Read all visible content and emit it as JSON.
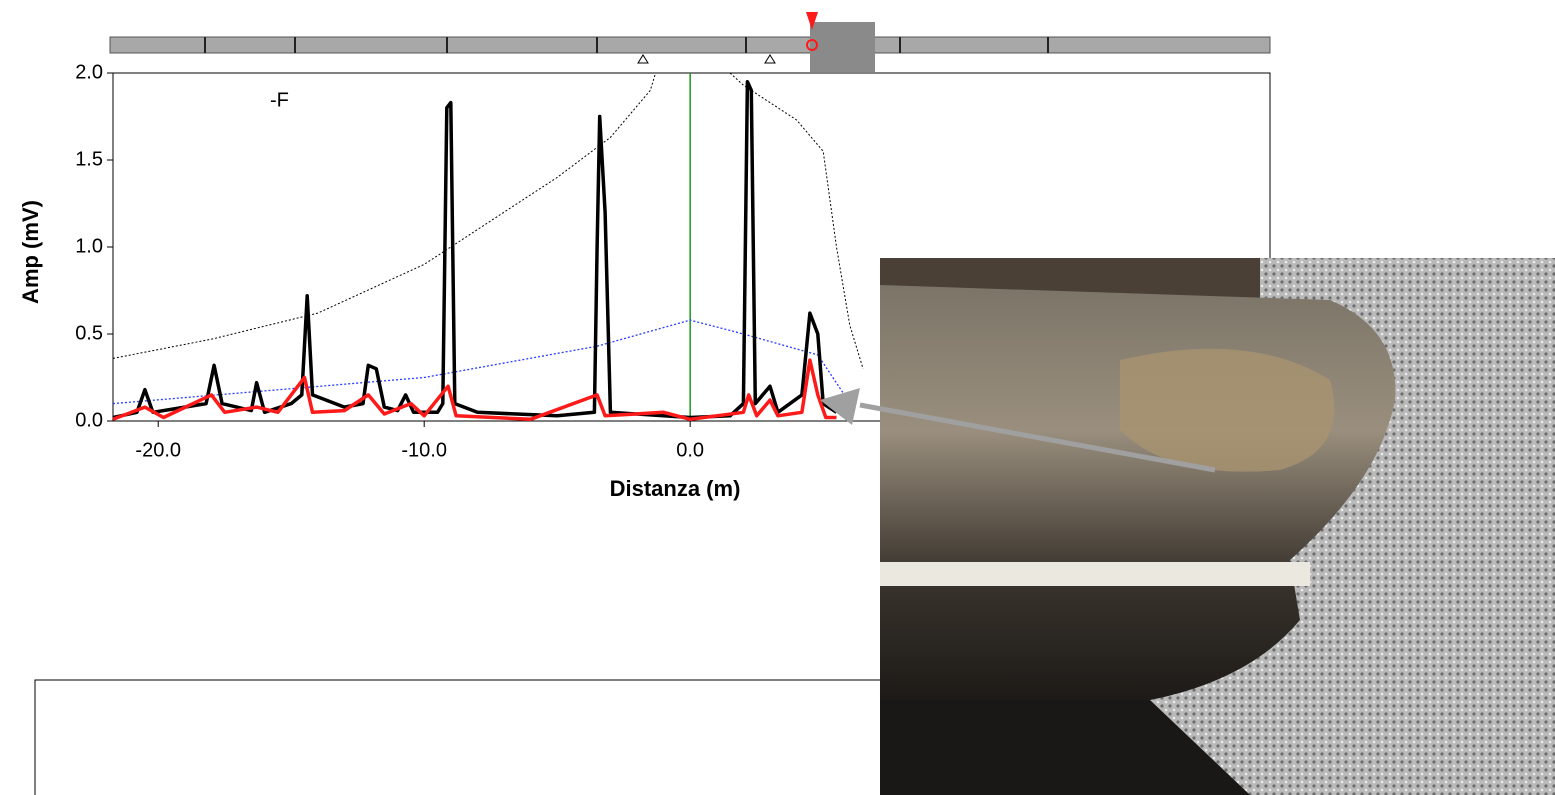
{
  "chart_data": {
    "type": "line",
    "annotation": "-F",
    "x_label": "Distanza (m)",
    "y_label": "Amp (mV)",
    "xlim": [
      -21.7,
      21.8
    ],
    "ylim": [
      0,
      2
    ],
    "xticks": [
      {
        "value": -20,
        "label": "-20.0"
      },
      {
        "value": -10,
        "label": "-10.0"
      },
      {
        "value": 0,
        "label": "0.0"
      }
    ],
    "yticks": [
      {
        "value": 0,
        "label": "0.0"
      },
      {
        "value": 0.5,
        "label": "0.5"
      },
      {
        "value": 1,
        "label": "1.0"
      },
      {
        "value": 1.5,
        "label": "1.5"
      },
      {
        "value": 2,
        "label": "2.0"
      }
    ],
    "reference_x": 0,
    "reference_color": "#1a9a1a",
    "series": [
      {
        "color": "#000000",
        "width": 1,
        "style": "dotted",
        "x": [
          -21.7,
          -18,
          -14,
          -10,
          -8,
          -5,
          -3,
          -1.5,
          -1.3
        ],
        "values": [
          0.36,
          0.47,
          0.62,
          0.9,
          1.1,
          1.4,
          1.63,
          1.9,
          2.0
        ]
      },
      {
        "color": "#000000",
        "width": 1,
        "style": "dotted",
        "x": [
          1.5,
          2,
          4,
          5,
          5.5,
          6,
          6.5
        ],
        "values": [
          2.0,
          1.93,
          1.73,
          1.55,
          1.0,
          0.55,
          0.3
        ]
      },
      {
        "color": "#2a3cff",
        "width": 1.3,
        "style": "dotted",
        "x": [
          -21.7,
          -10,
          -3.5,
          0,
          2,
          4.8,
          5.8
        ],
        "values": [
          0.1,
          0.25,
          0.43,
          0.58,
          0.5,
          0.38,
          0.15
        ]
      },
      {
        "color": "#000000",
        "width": 3.5,
        "style": "solid",
        "x": [
          -21.7,
          -20.8,
          -20.5,
          -20.2,
          -19,
          -18.2,
          -17.9,
          -17.6,
          -16.5,
          -16.3,
          -16,
          -15,
          -14.6,
          -14.4,
          -14.2,
          -13,
          -12.3,
          -12.1,
          -11.8,
          -11.5,
          -11,
          -10.7,
          -10.4,
          -9.5,
          -9.3,
          -9.15,
          -9.0,
          -8.85,
          -8,
          -5,
          -3.6,
          -3.5,
          -3.4,
          -3.2,
          -3.0,
          -1,
          0,
          1.5,
          2.0,
          2.15,
          2.3,
          2.45,
          3.0,
          3.3,
          4.2,
          4.5,
          4.8,
          5.0,
          5.5
        ],
        "values": [
          0.02,
          0.05,
          0.18,
          0.05,
          0.08,
          0.1,
          0.32,
          0.1,
          0.06,
          0.22,
          0.05,
          0.1,
          0.15,
          0.72,
          0.15,
          0.08,
          0.1,
          0.32,
          0.3,
          0.08,
          0.06,
          0.15,
          0.05,
          0.05,
          0.1,
          1.8,
          1.83,
          0.1,
          0.05,
          0.03,
          0.05,
          1.0,
          1.75,
          1.2,
          0.05,
          0.03,
          0.02,
          0.03,
          0.1,
          1.95,
          1.9,
          0.1,
          0.2,
          0.05,
          0.15,
          0.62,
          0.5,
          0.1,
          0.05
        ]
      },
      {
        "color": "#ff1a1a",
        "width": 3.5,
        "style": "solid",
        "x": [
          -21.7,
          -20.5,
          -19.8,
          -18,
          -17.5,
          -16.3,
          -15.5,
          -14.5,
          -14.2,
          -13,
          -12.1,
          -11.5,
          -10.5,
          -10,
          -9.1,
          -8.8,
          -6,
          -3.5,
          -3.2,
          -1,
          0,
          2,
          2.2,
          2.5,
          3,
          3.3,
          4.2,
          4.5,
          4.8,
          5.1,
          5.5
        ],
        "values": [
          0.01,
          0.08,
          0.02,
          0.15,
          0.05,
          0.08,
          0.05,
          0.25,
          0.05,
          0.06,
          0.15,
          0.04,
          0.1,
          0.03,
          0.2,
          0.03,
          0.01,
          0.15,
          0.03,
          0.05,
          0.01,
          0.05,
          0.15,
          0.03,
          0.12,
          0.03,
          0.05,
          0.35,
          0.15,
          0.02,
          0.02
        ]
      }
    ]
  }
}
